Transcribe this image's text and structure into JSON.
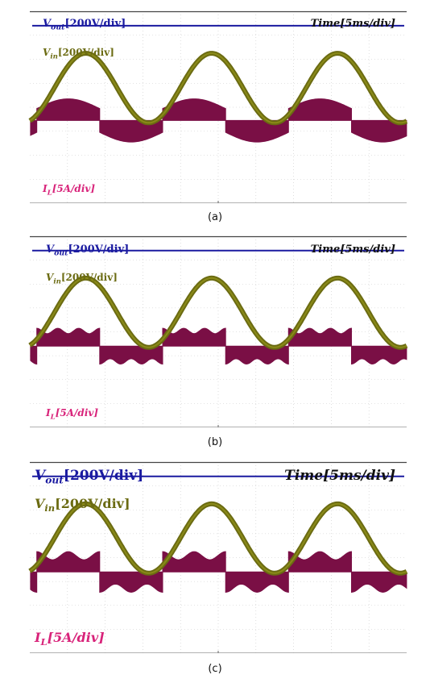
{
  "colors": {
    "vout": "#1a1aa0",
    "vin": "#6b6b12",
    "vin_fill": "#8a8a18",
    "il": "#7a0f45",
    "il_label": "#d8237a",
    "grid": "#c8c8c8",
    "frame": "#444444"
  },
  "chart_data": [
    {
      "type": "line",
      "caption": "(a)",
      "vout_label": {
        "sym": "V",
        "sub": "out",
        "scale": "[200V/div]"
      },
      "vin_label": {
        "sym": "V",
        "sub": "in",
        "scale": "[200V/div]"
      },
      "il_label": {
        "sym": "I",
        "sub": "L",
        "scale": "[5A/div]"
      },
      "time_label": {
        "sym": "Time",
        "scale": "[5ms/div]"
      },
      "time_per_div_ms": 5,
      "duration_ms": 50,
      "series": [
        {
          "name": "Vout",
          "type": "dc",
          "level_div": 3.4
        },
        {
          "name": "Vin",
          "type": "sine",
          "amplitude_div": 1.45,
          "offset_div": 0.8,
          "period_ms": 16.7,
          "phase_deg": 200
        },
        {
          "name": "IL",
          "type": "envelope",
          "offset_div": -0.55,
          "amplitude_div": 0.9,
          "shape": "scalloped"
        }
      ]
    },
    {
      "type": "line",
      "caption": "(b)",
      "vout_label": {
        "sym": "V",
        "sub": "out",
        "scale": "[200V/div]"
      },
      "vin_label": {
        "sym": "V",
        "sub": "in",
        "scale": "[200V/div]"
      },
      "il_label": {
        "sym": "I",
        "sub": "L",
        "scale": "[5A/div]"
      },
      "time_label": {
        "sym": "Time",
        "scale": "[5ms/div]"
      },
      "time_per_div_ms": 5,
      "duration_ms": 50,
      "series": [
        {
          "name": "Vout",
          "type": "dc",
          "level_div": 3.4
        },
        {
          "name": "Vin",
          "type": "sine",
          "amplitude_div": 1.45,
          "offset_div": 0.8,
          "period_ms": 16.7,
          "phase_deg": 200
        },
        {
          "name": "IL",
          "type": "envelope",
          "offset_div": -0.6,
          "amplitude_div": 0.75,
          "shape": "flat"
        }
      ]
    },
    {
      "type": "line",
      "caption": "(c)",
      "vout_label": {
        "sym": "V",
        "sub": "out",
        "scale": "[200V/div]"
      },
      "vin_label": {
        "sym": "V",
        "sub": "in",
        "scale": "[200V/div]"
      },
      "il_label": {
        "sym": "I",
        "sub": "L",
        "scale": "[5A/div]"
      },
      "time_label": {
        "sym": "Time",
        "scale": "[5ms/div]"
      },
      "time_per_div_ms": 5,
      "duration_ms": 50,
      "series": [
        {
          "name": "Vout",
          "type": "dc",
          "level_div": 3.4
        },
        {
          "name": "Vin",
          "type": "sine",
          "amplitude_div": 1.45,
          "offset_div": 0.8,
          "period_ms": 16.7,
          "phase_deg": 200
        },
        {
          "name": "IL",
          "type": "envelope",
          "offset_div": -0.6,
          "amplitude_div": 0.85,
          "shape": "humped"
        }
      ]
    }
  ]
}
